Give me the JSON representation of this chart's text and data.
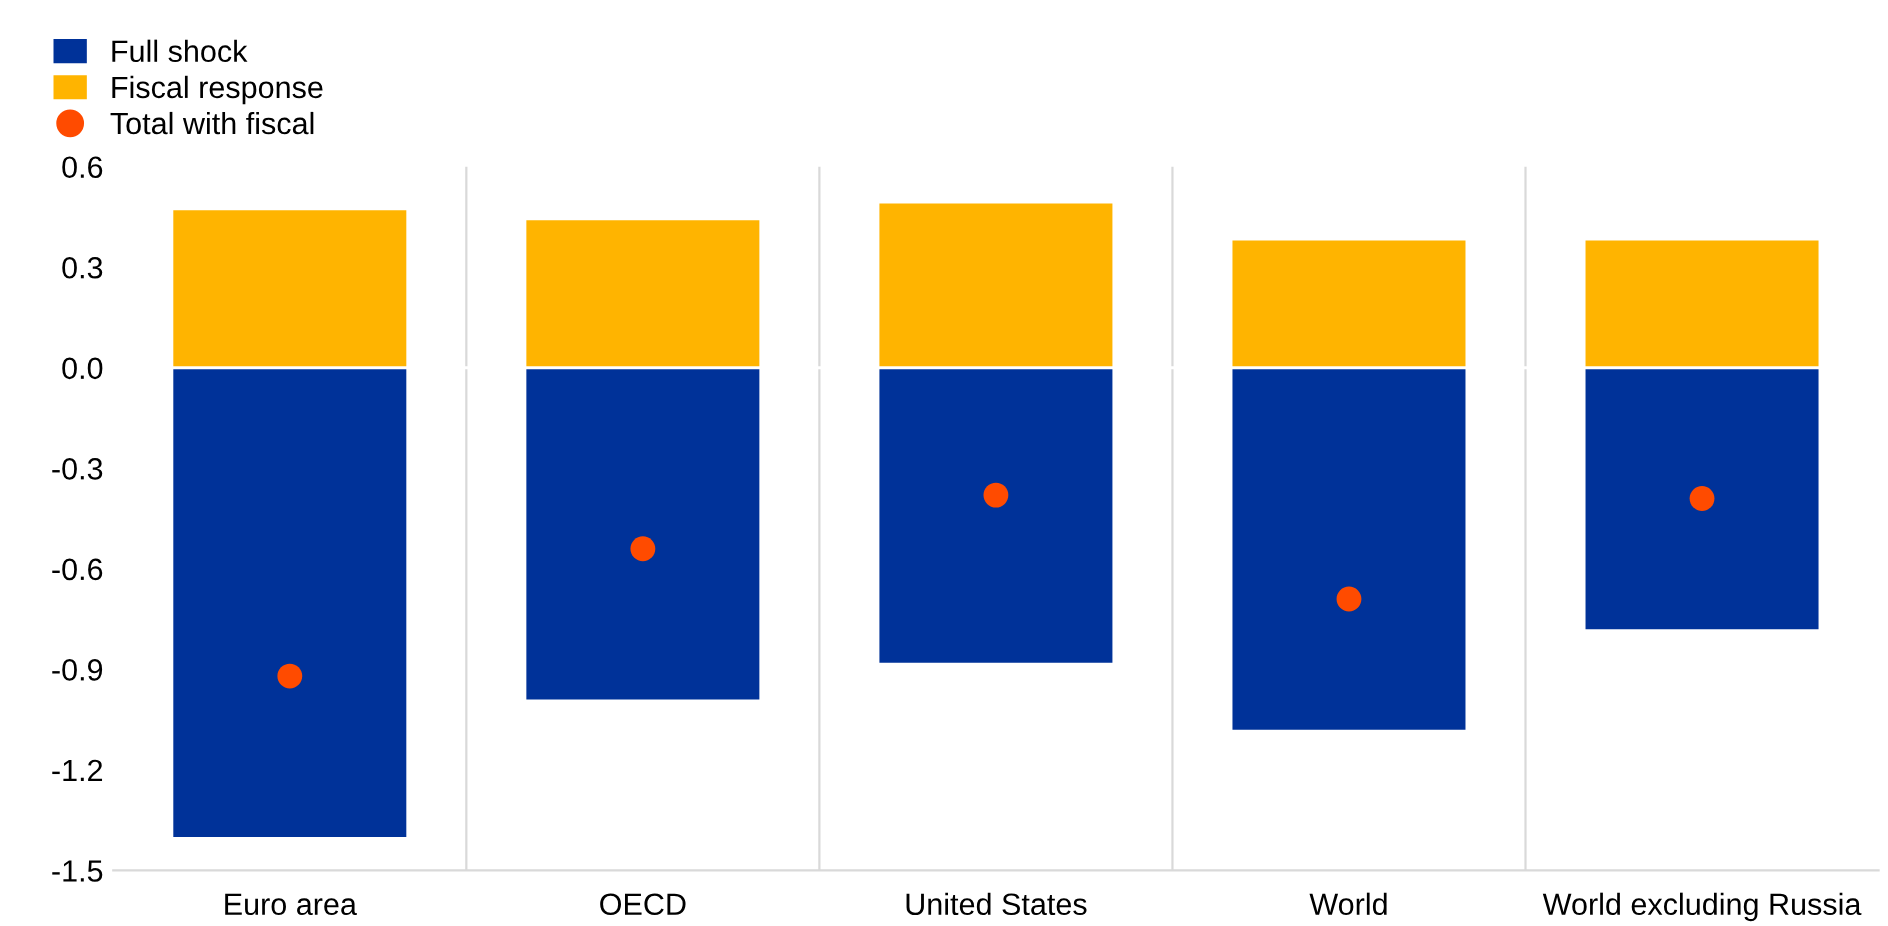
{
  "chart_data": {
    "type": "bar",
    "stacked": true,
    "categories": [
      "Euro area",
      "OECD",
      "United States",
      "World",
      "World excluding Russia"
    ],
    "series": [
      {
        "name": "Full shock",
        "color": "#003299",
        "values": [
          -1.4,
          -0.99,
          -0.88,
          -1.08,
          -0.78
        ]
      },
      {
        "name": "Fiscal response",
        "color": "#ffb400",
        "values": [
          0.47,
          0.44,
          0.49,
          0.38,
          0.38
        ]
      },
      {
        "name": "Total with fiscal",
        "type": "scatter",
        "color": "#ff4b00",
        "values": [
          -0.92,
          -0.54,
          -0.38,
          -0.69,
          -0.39
        ]
      }
    ],
    "ylim": [
      -1.5,
      0.6
    ],
    "yticks": [
      {
        "value": -1.5,
        "label": "-1.5"
      },
      {
        "value": -1.2,
        "label": "-1.2"
      },
      {
        "value": -0.9,
        "label": "-0.9"
      },
      {
        "value": -0.6,
        "label": "-0.6"
      },
      {
        "value": -0.3,
        "label": "-0.3"
      },
      {
        "value": 0.0,
        "label": "0.0"
      },
      {
        "value": 0.3,
        "label": "0.3"
      },
      {
        "value": 0.6,
        "label": "0.6"
      }
    ],
    "grid": "x",
    "legend": "top left",
    "marker": "circle"
  }
}
